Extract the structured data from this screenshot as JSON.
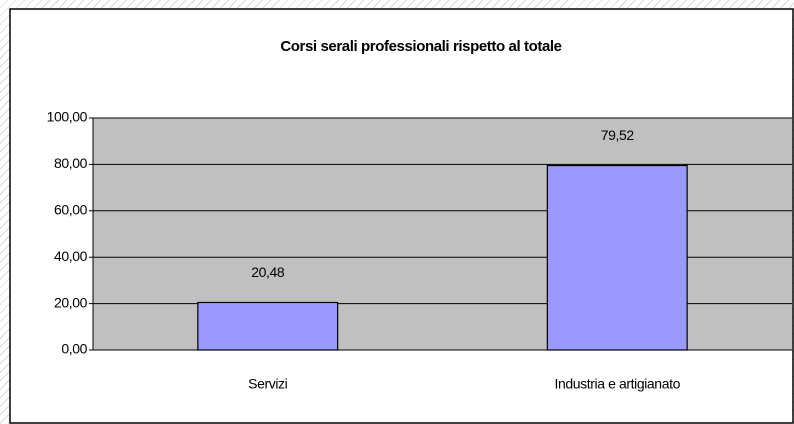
{
  "chart_data": {
    "type": "bar",
    "title": "Corsi serali professionali rispetto al totale",
    "categories": [
      "Servizi",
      "Industria e artigianato"
    ],
    "values": [
      20.48,
      79.52
    ],
    "value_labels": [
      "20,48",
      "79,52"
    ],
    "color": "#9999ff",
    "ylim": [
      0,
      100
    ],
    "yticks": [
      {
        "value": 0,
        "label": "0,00"
      },
      {
        "value": 20,
        "label": "20,00"
      },
      {
        "value": 40,
        "label": "40,00"
      },
      {
        "value": 60,
        "label": "60,00"
      },
      {
        "value": 80,
        "label": "80,00"
      },
      {
        "value": 100,
        "label": "100,00"
      }
    ],
    "grid": true
  }
}
